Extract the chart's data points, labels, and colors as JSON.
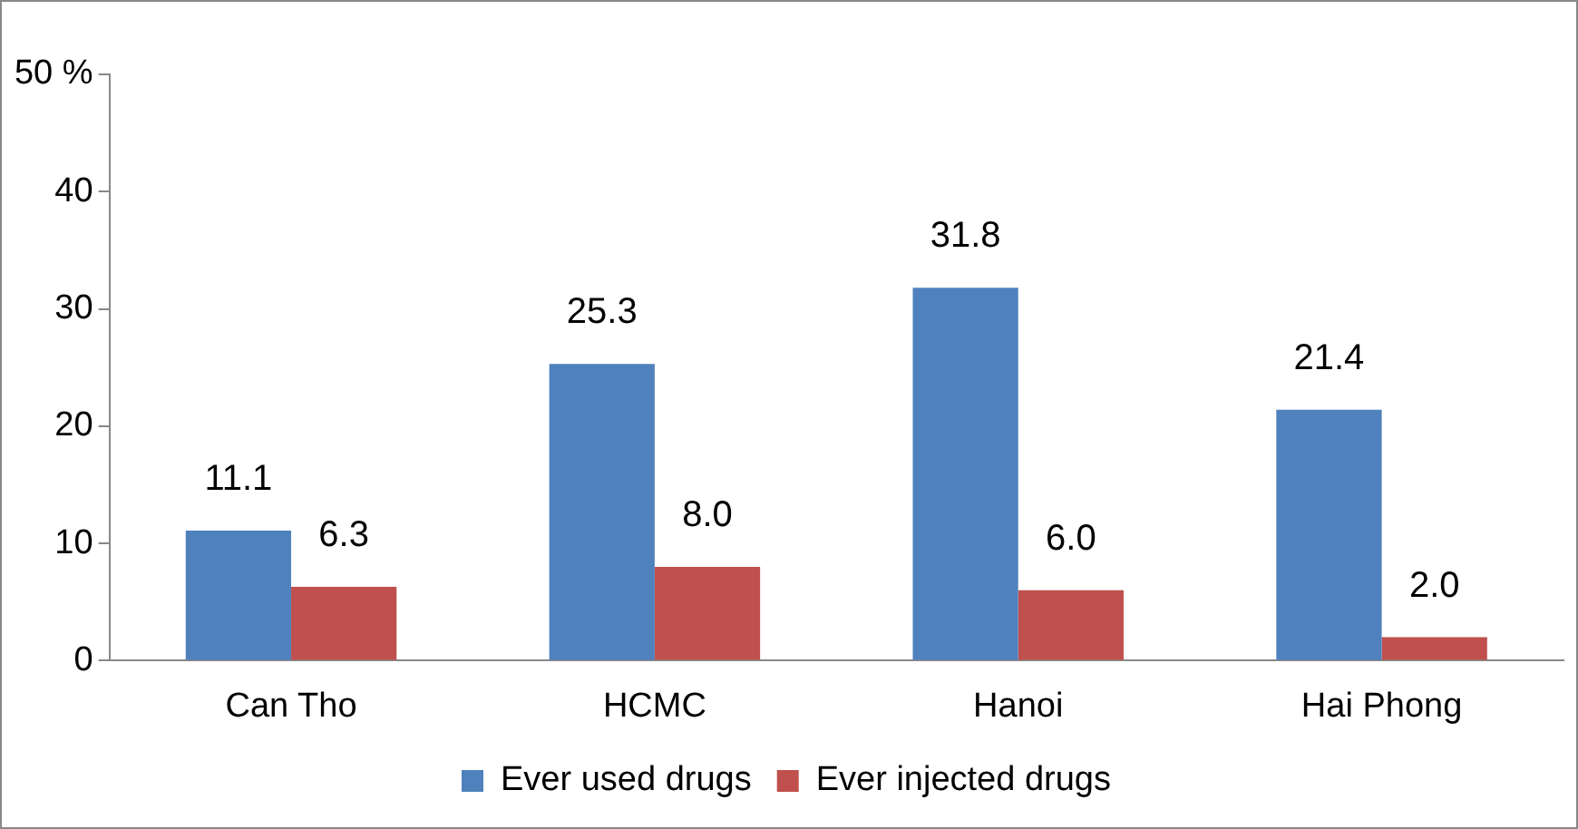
{
  "chart_data": {
    "type": "bar",
    "categories": [
      "Can Tho",
      "HCMC",
      "Hanoi",
      "Hai Phong"
    ],
    "series": [
      {
        "name": "Ever used drugs",
        "color": "#4f81bd",
        "values": [
          11.1,
          25.3,
          31.8,
          21.4
        ],
        "value_labels": [
          "11.1",
          "25.3",
          "31.8",
          "21.4"
        ]
      },
      {
        "name": "Ever injected drugs",
        "color": "#c0504d",
        "values": [
          6.3,
          8.0,
          6.0,
          2.0
        ],
        "value_labels": [
          "6.3",
          "8.0",
          "6.0",
          "2.0"
        ]
      }
    ],
    "ylim": [
      0,
      50
    ],
    "yticks": [
      0,
      10,
      20,
      30,
      40,
      {
        "value": 50,
        "label": "50 %"
      }
    ],
    "grid": false,
    "legend": "bottom"
  }
}
